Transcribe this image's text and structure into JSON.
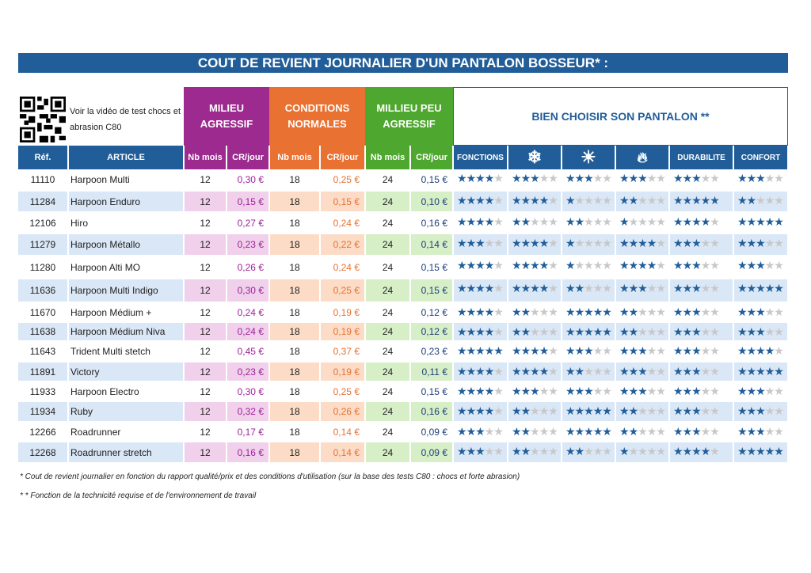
{
  "title": "COUT DE REVIENT JOURNALIER D'UN PANTALON BOSSEUR* :",
  "video_text": "Voir la vidéo de test chocs et abrasion C80",
  "groups": {
    "aggressive": "MILIEU AGRESSIF",
    "normal": "CONDITIONS NORMALES",
    "low": "MILLIEU PEU AGRESSIF",
    "choose": "BIEN CHOISIR SON PANTALON **"
  },
  "colors": {
    "blue": "#215e99",
    "purple": "#9c2a8f",
    "orange": "#e97132",
    "green": "#4ea72e"
  },
  "headers": {
    "ref": "Réf.",
    "article": "ARTICLE",
    "nb": "Nb mois",
    "cr": "CR/jour",
    "fonctions": "FONCTIONS",
    "cold": "snowflake-icon",
    "heat": "sun-icon",
    "fire": "flame-icon",
    "durabilite": "DURABILITE",
    "confort": "CONFORT"
  },
  "rows": [
    {
      "ref": "11110",
      "article": "Harpoon Multi",
      "nb1": "12",
      "cr1": "0,30 €",
      "nb2": "18",
      "cr2": "0,25 €",
      "nb3": "24",
      "cr3": "0,15 €",
      "stars": [
        4,
        3,
        3,
        3,
        3,
        3
      ]
    },
    {
      "ref": "11284",
      "article": "Harpoon Enduro",
      "nb1": "12",
      "cr1": "0,15 €",
      "nb2": "18",
      "cr2": "0,15 €",
      "nb3": "24",
      "cr3": "0,10 €",
      "stars": [
        4,
        4,
        1,
        2,
        5,
        2
      ]
    },
    {
      "ref": "12106",
      "article": "Hiro",
      "nb1": "12",
      "cr1": "0,27 €",
      "nb2": "18",
      "cr2": "0,24 €",
      "nb3": "24",
      "cr3": "0,16 €",
      "stars": [
        4,
        2,
        2,
        1,
        4,
        5
      ]
    },
    {
      "ref": "11279",
      "article": "Harpoon Métallo",
      "nb1": "12",
      "cr1": "0,23 €",
      "nb2": "18",
      "cr2": "0,22 €",
      "nb3": "24",
      "cr3": "0,14 €",
      "stars": [
        3,
        4,
        1,
        4,
        3,
        3
      ]
    },
    {
      "ref": "11280",
      "article": "Harpoon Alti MO",
      "nb1": "12",
      "cr1": "0,26 €",
      "nb2": "18",
      "cr2": "0,24 €",
      "nb3": "24",
      "cr3": "0,15 €",
      "stars": [
        4,
        4,
        1,
        4,
        3,
        3
      ]
    },
    {
      "ref": "11636",
      "article": "Harpoon Multi Indigo",
      "nb1": "12",
      "cr1": "0,30 €",
      "nb2": "18",
      "cr2": "0,25 €",
      "nb3": "24",
      "cr3": "0,15 €",
      "stars": [
        4,
        4,
        2,
        3,
        3,
        5
      ]
    },
    {
      "ref": "11670",
      "article": "Harpoon Médium +",
      "nb1": "12",
      "cr1": "0,24 €",
      "nb2": "18",
      "cr2": "0,19 €",
      "nb3": "24",
      "cr3": "0,12 €",
      "stars": [
        4,
        2,
        5,
        2,
        3,
        3
      ]
    },
    {
      "ref": "11638",
      "article": "Harpoon Médium Niva",
      "nb1": "12",
      "cr1": "0,24 €",
      "nb2": "18",
      "cr2": "0,19 €",
      "nb3": "24",
      "cr3": "0,12 €",
      "stars": [
        4,
        2,
        5,
        2,
        3,
        3
      ]
    },
    {
      "ref": "11643",
      "article": "Trident Multi stetch",
      "nb1": "12",
      "cr1": "0,45 €",
      "nb2": "18",
      "cr2": "0,37 €",
      "nb3": "24",
      "cr3": "0,23 €",
      "stars": [
        5,
        4,
        3,
        3,
        3,
        4
      ]
    },
    {
      "ref": "11891",
      "article": "Victory",
      "nb1": "12",
      "cr1": "0,23 €",
      "nb2": "18",
      "cr2": "0,19 €",
      "nb3": "24",
      "cr3": "0,11 €",
      "stars": [
        4,
        4,
        2,
        3,
        3,
        5
      ]
    },
    {
      "ref": "11933",
      "article": "Harpoon Electro",
      "nb1": "12",
      "cr1": "0,30 €",
      "nb2": "18",
      "cr2": "0,25 €",
      "nb3": "24",
      "cr3": "0,15 €",
      "stars": [
        4,
        3,
        3,
        3,
        3,
        3
      ]
    },
    {
      "ref": "11934",
      "article": "Ruby",
      "nb1": "12",
      "cr1": "0,32 €",
      "nb2": "18",
      "cr2": "0,26 €",
      "nb3": "24",
      "cr3": "0,16 €",
      "stars": [
        4,
        2,
        5,
        2,
        3,
        3
      ]
    },
    {
      "ref": "12266",
      "article": "Roadrunner",
      "nb1": "12",
      "cr1": "0,17 €",
      "nb2": "18",
      "cr2": "0,14 €",
      "nb3": "24",
      "cr3": "0,09 €",
      "stars": [
        3,
        2,
        5,
        2,
        3,
        3
      ]
    },
    {
      "ref": "12268",
      "article": "Roadrunner stretch",
      "nb1": "12",
      "cr1": "0,16 €",
      "nb2": "18",
      "cr2": "0,14 €",
      "nb3": "24",
      "cr3": "0,09 €",
      "stars": [
        3,
        2,
        2,
        1,
        4,
        5
      ]
    }
  ],
  "footnotes": [
    "* Cout de revient journalier en fonction du rapport qualité/prix et des conditions d'utilisation (sur la base des tests C80 : chocs et forte abrasion)",
    "* * Fonction de la technicité requise et de l'environnement de travail"
  ]
}
